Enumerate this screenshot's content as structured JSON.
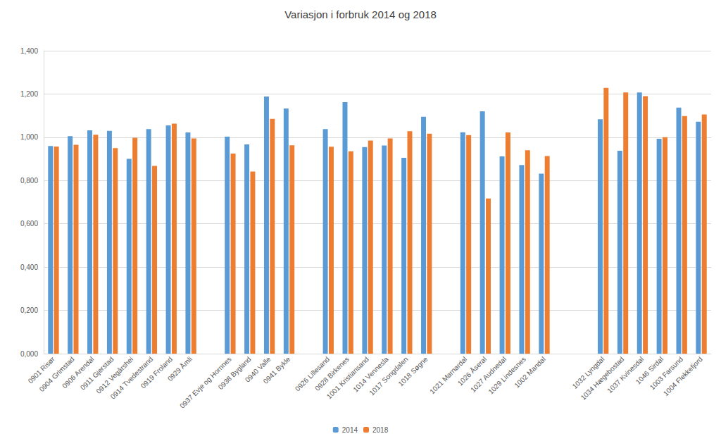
{
  "chart_data": {
    "type": "bar",
    "title": "Variasjon i forbruk 2014 og 2018",
    "categories": [
      "0901 Risør",
      "0904 Grimstad",
      "0906 Arendal",
      "0911 Gjerstad",
      "0912 Vegårshei",
      "0914 Tvedestrand",
      "0919 Froland",
      "0929 Åmli",
      null,
      "0937 Evje og Hornnes",
      "0938 Bygland",
      "0940 Valle",
      "0941 Bykle",
      null,
      "0926 Lillesand",
      "0928 Birkenes",
      "1001 Kristiansand",
      "1014 Vennesla",
      "1017 Songdalen",
      "1018 Søgne",
      null,
      "1021 Marnardal",
      "1026 Åseral",
      "1027 Audnedal",
      "1029 Lindesnes",
      "1002 Mandal",
      null,
      null,
      "1032 Lyngdal",
      "1034 Hægebostad",
      "1037 Kvinesdal",
      "1046 Sirdal",
      "1003 Farsund",
      "1004 Flekkefjord"
    ],
    "series": [
      {
        "name": "2014",
        "color": "#5b9bd5",
        "values": [
          0.96,
          1.005,
          1.032,
          1.03,
          0.9,
          1.038,
          1.055,
          1.022,
          null,
          1.003,
          0.967,
          1.188,
          1.133,
          null,
          1.038,
          1.162,
          0.955,
          0.962,
          0.905,
          1.095,
          null,
          1.023,
          1.12,
          0.912,
          0.872,
          0.832,
          null,
          null,
          1.083,
          0.938,
          1.207,
          0.993,
          1.137,
          1.072
        ]
      },
      {
        "name": "2018",
        "color": "#ed7d31",
        "values": [
          0.957,
          0.965,
          1.012,
          0.95,
          0.998,
          0.868,
          1.063,
          0.995,
          null,
          0.925,
          0.842,
          1.085,
          0.963,
          null,
          0.956,
          0.935,
          0.985,
          0.995,
          1.028,
          1.017,
          null,
          1.01,
          0.717,
          1.022,
          0.94,
          0.913,
          null,
          null,
          1.228,
          1.207,
          1.19,
          1.0,
          1.098,
          1.105
        ]
      }
    ],
    "ylim": [
      0,
      1.4
    ],
    "yticks": [
      {
        "value": 0,
        "label": "0,000"
      },
      {
        "value": 0.2,
        "label": "0,200"
      },
      {
        "value": 0.4,
        "label": "0,400"
      },
      {
        "value": 0.6,
        "label": "0,600"
      },
      {
        "value": 0.8,
        "label": "0,800"
      },
      {
        "value": 1.0,
        "label": "1,000"
      },
      {
        "value": 1.2,
        "label": "1,200"
      },
      {
        "value": 1.4,
        "label": "1,400"
      }
    ],
    "grid": true,
    "legend": "bottom"
  }
}
